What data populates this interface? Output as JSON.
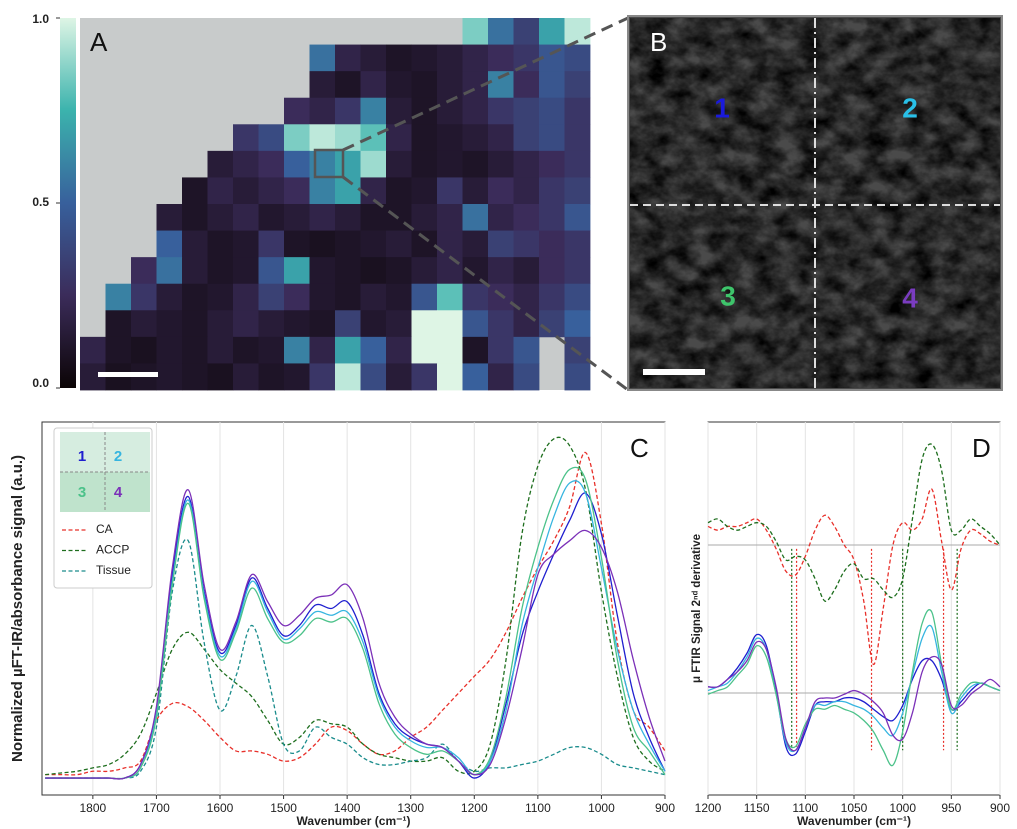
{
  "chart_data": [
    {
      "type": "heatmap",
      "panel": "A",
      "colormap": [
        "#0b0405",
        "#3b2c5a",
        "#38609c",
        "#3bb3ad",
        "#def5e5"
      ],
      "zlim": [
        0,
        1
      ],
      "zticks": [
        {
          "value": 0,
          "label": "0.0"
        },
        0.5,
        {
          "value": 1,
          "label": "1.0"
        }
      ],
      "values": [
        [
          null,
          null,
          null,
          null,
          null,
          null,
          null,
          null,
          null,
          null,
          null,
          null,
          null,
          null,
          null,
          0.85,
          0.55,
          0.35,
          0.7,
          0.95
        ],
        [
          null,
          null,
          null,
          null,
          null,
          null,
          null,
          null,
          null,
          0.55,
          0.2,
          0.15,
          0.1,
          0.12,
          0.15,
          0.2,
          0.25,
          0.3,
          0.45,
          0.4
        ],
        [
          null,
          null,
          null,
          null,
          null,
          null,
          null,
          null,
          null,
          0.15,
          0.1,
          0.2,
          0.12,
          0.1,
          0.15,
          0.2,
          0.6,
          0.25,
          0.45,
          0.35
        ],
        [
          null,
          null,
          null,
          null,
          null,
          null,
          null,
          null,
          0.25,
          0.2,
          0.3,
          0.6,
          0.15,
          0.1,
          0.15,
          0.2,
          0.3,
          0.35,
          0.4,
          0.3
        ],
        [
          null,
          null,
          null,
          null,
          null,
          null,
          0.3,
          0.4,
          0.85,
          0.95,
          0.9,
          0.8,
          0.2,
          0.1,
          0.12,
          0.15,
          0.2,
          0.35,
          0.4,
          0.3
        ],
        [
          null,
          null,
          null,
          null,
          null,
          0.15,
          0.2,
          0.25,
          0.5,
          0.6,
          0.7,
          0.9,
          0.15,
          0.1,
          0.12,
          0.1,
          0.15,
          0.2,
          0.25,
          0.3
        ],
        [
          null,
          null,
          null,
          null,
          0.1,
          0.2,
          0.15,
          0.2,
          0.25,
          0.6,
          0.7,
          0.2,
          0.1,
          0.12,
          0.3,
          0.15,
          0.25,
          0.2,
          0.3,
          0.35
        ],
        [
          null,
          null,
          null,
          0.15,
          0.1,
          0.15,
          0.2,
          0.12,
          0.15,
          0.2,
          0.15,
          0.1,
          0.1,
          0.15,
          0.2,
          0.55,
          0.2,
          0.25,
          0.3,
          0.45
        ],
        [
          null,
          null,
          null,
          0.5,
          0.15,
          0.1,
          0.12,
          0.3,
          0.1,
          0.08,
          0.1,
          0.12,
          0.15,
          0.1,
          0.2,
          0.15,
          0.35,
          0.3,
          0.25,
          0.3
        ],
        [
          null,
          null,
          0.25,
          0.55,
          0.15,
          0.1,
          0.12,
          0.45,
          0.7,
          0.12,
          0.1,
          0.08,
          0.1,
          0.15,
          0.2,
          0.12,
          0.2,
          0.15,
          0.25,
          0.3
        ],
        [
          null,
          0.6,
          0.3,
          0.15,
          0.1,
          0.12,
          0.2,
          0.35,
          0.25,
          0.12,
          0.1,
          0.15,
          0.12,
          0.45,
          0.8,
          0.3,
          0.25,
          0.2,
          0.3,
          0.4
        ],
        [
          null,
          0.1,
          0.15,
          0.12,
          0.1,
          0.15,
          0.2,
          0.15,
          0.12,
          0.1,
          0.35,
          0.12,
          0.15,
          1.0,
          1.0,
          0.45,
          0.3,
          0.2,
          0.35,
          0.5
        ],
        [
          0.2,
          0.1,
          0.08,
          0.12,
          0.1,
          0.15,
          0.1,
          0.12,
          0.6,
          0.2,
          0.7,
          0.5,
          0.2,
          1.0,
          1.0,
          0.1,
          0.3,
          0.45,
          null,
          0.35
        ],
        [
          0.15,
          0.08,
          0.1,
          0.12,
          0.1,
          0.08,
          0.15,
          0.1,
          0.12,
          0.3,
          0.95,
          0.4,
          0.15,
          0.3,
          1.0,
          0.5,
          0.2,
          0.4,
          null,
          0.4
        ]
      ]
    },
    {
      "type": "image",
      "panel": "B",
      "labels": [
        {
          "text": "1",
          "color": "#1a1adb"
        },
        {
          "text": "2",
          "color": "#29c0e8"
        },
        {
          "text": "3",
          "color": "#3ec46b"
        },
        {
          "text": "4",
          "color": "#7a3cc0"
        }
      ]
    },
    {
      "type": "line",
      "panel": "C",
      "xlabel": "Wavenumber (cm⁻¹)",
      "ylabel": "Normalized µFT-IR/absorbance signal (a.u.)",
      "x": [
        1875,
        1850,
        1825,
        1800,
        1775,
        1750,
        1725,
        1700,
        1675,
        1650,
        1625,
        1600,
        1575,
        1550,
        1525,
        1500,
        1475,
        1450,
        1425,
        1400,
        1375,
        1350,
        1325,
        1300,
        1275,
        1250,
        1225,
        1200,
        1175,
        1150,
        1125,
        1100,
        1075,
        1050,
        1025,
        1000,
        975,
        950,
        925,
        900
      ],
      "xlim": [
        1880,
        900
      ],
      "ylim": [
        -0.05,
        1.05
      ],
      "xticks": [
        1800,
        1700,
        1600,
        1500,
        1400,
        1300,
        1200,
        1100,
        1000,
        900
      ],
      "grid": true,
      "series": [
        {
          "name": "1",
          "color": "#1f1fcf",
          "style": "solid",
          "values": [
            0,
            0,
            0,
            0,
            0,
            0,
            0.04,
            0.2,
            0.6,
            0.83,
            0.55,
            0.37,
            0.45,
            0.59,
            0.5,
            0.42,
            0.45,
            0.51,
            0.5,
            0.52,
            0.42,
            0.25,
            0.16,
            0.12,
            0.1,
            0.09,
            0.05,
            0,
            0.05,
            0.22,
            0.42,
            0.55,
            0.66,
            0.76,
            0.84,
            0.72,
            0.48,
            0.25,
            0.12,
            0.02
          ]
        },
        {
          "name": "2",
          "color": "#36b5e0",
          "style": "solid",
          "values": [
            0,
            0,
            0,
            0,
            0,
            0,
            0.03,
            0.19,
            0.58,
            0.82,
            0.54,
            0.36,
            0.44,
            0.58,
            0.49,
            0.41,
            0.44,
            0.49,
            0.48,
            0.49,
            0.4,
            0.24,
            0.15,
            0.11,
            0.09,
            0.09,
            0.06,
            0.01,
            0.05,
            0.2,
            0.45,
            0.62,
            0.77,
            0.87,
            0.84,
            0.62,
            0.38,
            0.2,
            0.1,
            0.02
          ]
        },
        {
          "name": "3",
          "color": "#4cc28a",
          "style": "solid",
          "values": [
            0,
            0,
            0,
            0,
            0,
            0,
            0.03,
            0.18,
            0.57,
            0.81,
            0.53,
            0.35,
            0.43,
            0.56,
            0.47,
            0.4,
            0.42,
            0.47,
            0.46,
            0.47,
            0.38,
            0.22,
            0.13,
            0.09,
            0.07,
            0.08,
            0.05,
            0.01,
            0.06,
            0.24,
            0.5,
            0.68,
            0.82,
            0.91,
            0.88,
            0.65,
            0.35,
            0.15,
            0.08,
            0.01
          ]
        },
        {
          "name": "4",
          "color": "#7b30b8",
          "style": "solid",
          "values": [
            0,
            0,
            0,
            0,
            0,
            0,
            0.04,
            0.21,
            0.62,
            0.85,
            0.57,
            0.38,
            0.46,
            0.6,
            0.52,
            0.45,
            0.48,
            0.53,
            0.54,
            0.57,
            0.47,
            0.28,
            0.18,
            0.13,
            0.1,
            0.09,
            0.05,
            0.01,
            0.04,
            0.18,
            0.38,
            0.6,
            0.66,
            0.7,
            0.73,
            0.68,
            0.55,
            0.35,
            0.18,
            0.05
          ]
        },
        {
          "name": "CA",
          "color": "#e8302a",
          "style": "dashed",
          "values": [
            0.01,
            0.01,
            0.01,
            0.02,
            0.02,
            0.03,
            0.05,
            0.17,
            0.22,
            0.21,
            0.17,
            0.12,
            0.08,
            0.08,
            0.07,
            0.05,
            0.06,
            0.1,
            0.15,
            0.14,
            0.1,
            0.07,
            0.08,
            0.12,
            0.15,
            0.2,
            0.25,
            0.3,
            0.35,
            0.43,
            0.53,
            0.62,
            0.7,
            0.8,
            0.96,
            0.75,
            0.4,
            0.2,
            0.15,
            0.08
          ]
        },
        {
          "name": "ACCP",
          "color": "#1e6e1e",
          "style": "dashed",
          "values": [
            0.01,
            0.015,
            0.02,
            0.03,
            0.04,
            0.07,
            0.13,
            0.25,
            0.38,
            0.43,
            0.38,
            0.32,
            0.28,
            0.24,
            0.17,
            0.1,
            0.12,
            0.17,
            0.16,
            0.15,
            0.1,
            0.07,
            0.06,
            0.05,
            0.05,
            0.06,
            0.02,
            0.02,
            0.1,
            0.35,
            0.72,
            0.92,
            1.0,
            0.98,
            0.85,
            0.55,
            0.3,
            0.12,
            0.05,
            0.02
          ]
        },
        {
          "name": "Tissue",
          "color": "#1a8c8c",
          "style": "dashed",
          "values": [
            0,
            0,
            0,
            0,
            0,
            0,
            0.02,
            0.15,
            0.55,
            0.7,
            0.4,
            0.2,
            0.3,
            0.45,
            0.3,
            0.1,
            0.08,
            0.15,
            0.12,
            0.1,
            0.06,
            0.04,
            0.04,
            0.05,
            0.06,
            0.1,
            0.05,
            0.02,
            0.03,
            0.03,
            0.04,
            0.05,
            0.07,
            0.09,
            0.09,
            0.07,
            0.04,
            0.03,
            0.02,
            0.01
          ]
        }
      ]
    },
    {
      "type": "line",
      "panel": "D",
      "xlabel": "Wavenumber (cm⁻¹)",
      "ylabel": "μ FTIR Signal 2ⁿᵈ derivative",
      "x": [
        1200,
        1190,
        1180,
        1170,
        1160,
        1150,
        1140,
        1130,
        1120,
        1110,
        1100,
        1090,
        1080,
        1070,
        1060,
        1050,
        1040,
        1030,
        1020,
        1010,
        1000,
        990,
        980,
        970,
        960,
        950,
        940,
        930,
        920,
        910,
        900
      ],
      "xlim": [
        1200,
        900
      ],
      "ylim": [
        0,
        1
      ],
      "xticks": [
        1200,
        1150,
        1100,
        1050,
        1000,
        950,
        900
      ],
      "grid": true,
      "series": [
        {
          "color": "#e8302a",
          "style": "dashed",
          "values": [
            0.72,
            0.71,
            0.72,
            0.72,
            0.73,
            0.74,
            0.71,
            0.66,
            0.6,
            0.59,
            0.64,
            0.71,
            0.75,
            0.72,
            0.67,
            0.63,
            0.52,
            0.35,
            0.5,
            0.67,
            0.73,
            0.71,
            0.74,
            0.82,
            0.68,
            0.55,
            0.66,
            0.71,
            0.7,
            0.68,
            0.67
          ]
        },
        {
          "color": "#1e6e1e",
          "style": "dashed",
          "values": [
            0.73,
            0.74,
            0.72,
            0.71,
            0.72,
            0.73,
            0.72,
            0.68,
            0.63,
            0.64,
            0.63,
            0.58,
            0.52,
            0.55,
            0.6,
            0.62,
            0.58,
            0.58,
            0.55,
            0.53,
            0.58,
            0.74,
            0.9,
            0.94,
            0.87,
            0.71,
            0.71,
            0.74,
            0.72,
            0.7,
            0.67
          ]
        },
        {
          "color": "#1f1fcf",
          "style": "solid",
          "values": [
            0.29,
            0.29,
            0.31,
            0.34,
            0.38,
            0.43,
            0.4,
            0.28,
            0.13,
            0.11,
            0.17,
            0.24,
            0.25,
            0.25,
            0.26,
            0.26,
            0.25,
            0.23,
            0.21,
            0.2,
            0.24,
            0.31,
            0.36,
            0.36,
            0.31,
            0.23,
            0.25,
            0.28,
            0.3,
            0.29,
            0.28
          ]
        },
        {
          "color": "#36b5e0",
          "style": "solid",
          "values": [
            0.28,
            0.29,
            0.3,
            0.33,
            0.37,
            0.42,
            0.39,
            0.27,
            0.14,
            0.12,
            0.18,
            0.24,
            0.24,
            0.25,
            0.25,
            0.24,
            0.23,
            0.21,
            0.18,
            0.16,
            0.22,
            0.32,
            0.42,
            0.45,
            0.33,
            0.22,
            0.26,
            0.29,
            0.3,
            0.29,
            0.28
          ]
        },
        {
          "color": "#4cc28a",
          "style": "solid",
          "values": [
            0.27,
            0.28,
            0.29,
            0.32,
            0.35,
            0.4,
            0.37,
            0.27,
            0.15,
            0.13,
            0.19,
            0.23,
            0.23,
            0.24,
            0.23,
            0.22,
            0.2,
            0.17,
            0.12,
            0.08,
            0.17,
            0.33,
            0.46,
            0.49,
            0.35,
            0.23,
            0.27,
            0.3,
            0.3,
            0.29,
            0.28
          ]
        },
        {
          "color": "#7b30b8",
          "style": "solid",
          "values": [
            0.29,
            0.29,
            0.31,
            0.33,
            0.36,
            0.41,
            0.39,
            0.29,
            0.15,
            0.12,
            0.18,
            0.25,
            0.26,
            0.26,
            0.27,
            0.28,
            0.27,
            0.25,
            0.22,
            0.16,
            0.15,
            0.22,
            0.33,
            0.37,
            0.35,
            0.24,
            0.24,
            0.27,
            0.29,
            0.31,
            0.29
          ]
        }
      ],
      "markers": [
        {
          "x": 1114,
          "color": "#1e6e1e"
        },
        {
          "x": 1109,
          "color": "#e8302a"
        },
        {
          "x": 1032,
          "color": "#e8302a"
        },
        {
          "x": 1000,
          "color": "#1e6e1e"
        },
        {
          "x": 958,
          "color": "#e8302a"
        },
        {
          "x": 944,
          "color": "#1e6e1e"
        }
      ]
    }
  ]
}
